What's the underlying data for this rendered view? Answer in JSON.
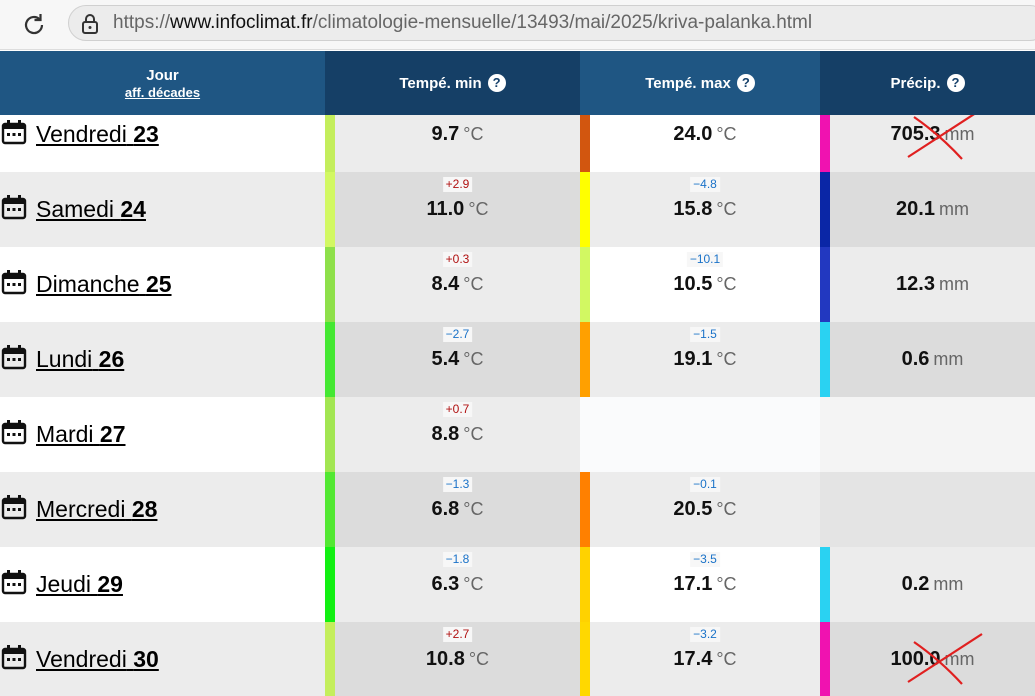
{
  "browser": {
    "url_scheme": "https://",
    "url_host": "www.infoclimat.fr",
    "url_path": "/climatologie-mensuelle/13493/mai/2025/kriva-palanka.html"
  },
  "header": {
    "day": "Jour",
    "day_link": "aff. décades",
    "min": "Tempé. min",
    "max": "Tempé. max",
    "precip": "Précip.",
    "help_icon": "?"
  },
  "units": {
    "temp": "°C",
    "precip": "mm"
  },
  "rows": [
    {
      "weekday": "Vendredi",
      "day": "23",
      "min": {
        "value": "9.7",
        "delta": null,
        "color": "#c4ee5c"
      },
      "max": {
        "value": "24.0",
        "delta": null,
        "color": "#d2560f"
      },
      "precip": {
        "value": "705.3",
        "color": "#f012b0",
        "crossed": true
      }
    },
    {
      "weekday": "Samedi",
      "day": "24",
      "min": {
        "value": "11.0",
        "delta": "+2.9",
        "color": "#d2f862"
      },
      "max": {
        "value": "15.8",
        "delta": "−4.8",
        "color": "#ffff00"
      },
      "precip": {
        "value": "20.1",
        "color": "#0a26a6",
        "crossed": false
      }
    },
    {
      "weekday": "Dimanche",
      "day": "25",
      "min": {
        "value": "8.4",
        "delta": "+0.3",
        "color": "#8ee04a"
      },
      "max": {
        "value": "10.5",
        "delta": "−10.1",
        "color": "#d2f862"
      },
      "precip": {
        "value": "12.3",
        "color": "#2238c0",
        "crossed": false
      }
    },
    {
      "weekday": "Lundi",
      "day": "26",
      "min": {
        "value": "5.4",
        "delta": "−2.7",
        "color": "#44e832"
      },
      "max": {
        "value": "19.1",
        "delta": "−1.5",
        "color": "#ffa000"
      },
      "precip": {
        "value": "0.6",
        "color": "#2ad2f2",
        "crossed": false
      }
    },
    {
      "weekday": "Mardi",
      "day": "27",
      "min": {
        "value": "8.8",
        "delta": "+0.7",
        "color": "#a2e652"
      },
      "max": null,
      "precip": null
    },
    {
      "weekday": "Mercredi",
      "day": "28",
      "min": {
        "value": "6.8",
        "delta": "−1.3",
        "color": "#52e832"
      },
      "max": {
        "value": "20.5",
        "delta": "−0.1",
        "color": "#ff8000"
      },
      "precip": null
    },
    {
      "weekday": "Jeudi",
      "day": "29",
      "min": {
        "value": "6.3",
        "delta": "−1.8",
        "color": "#12f012"
      },
      "max": {
        "value": "17.1",
        "delta": "−3.5",
        "color": "#ffd200"
      },
      "precip": {
        "value": "0.2",
        "color": "#2ad2f2",
        "crossed": false
      }
    },
    {
      "weekday": "Vendredi",
      "day": "30",
      "min": {
        "value": "10.8",
        "delta": "+2.7",
        "color": "#c4ee5c"
      },
      "max": {
        "value": "17.4",
        "delta": "−3.2",
        "color": "#ffd800"
      },
      "precip": {
        "value": "100.0",
        "color": "#f012b0",
        "crossed": true
      }
    }
  ]
}
